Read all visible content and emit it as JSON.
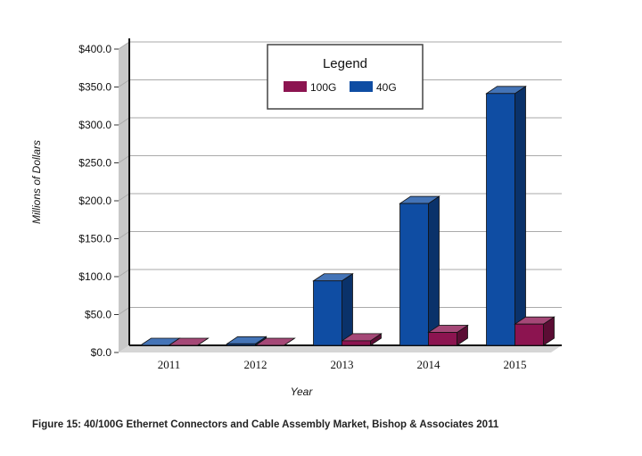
{
  "chart_data": {
    "type": "bar",
    "categories": [
      "2011",
      "2012",
      "2013",
      "2014",
      "2015"
    ],
    "series": [
      {
        "name": "100G",
        "values": [
          0,
          0,
          6,
          17,
          28
        ],
        "color": "#8c1450"
      },
      {
        "name": "40G",
        "values": [
          0,
          2,
          85,
          187,
          332
        ],
        "color": "#0f4da3"
      }
    ],
    "yticks": [
      "$0.0",
      "$50.0",
      "$100.0",
      "$150.0",
      "$200.0",
      "$250.0",
      "$300.0",
      "$350.0",
      "$400.0"
    ],
    "ylim": [
      0,
      400
    ],
    "xlabel": "Year",
    "ylabel": "Millions of Dollars",
    "legend": {
      "title": "Legend",
      "placement": "top-center"
    },
    "grid": true
  },
  "caption": "Figure 15: 40/100G Ethernet Connectors and Cable Assembly Market, Bishop & Associates 2011"
}
